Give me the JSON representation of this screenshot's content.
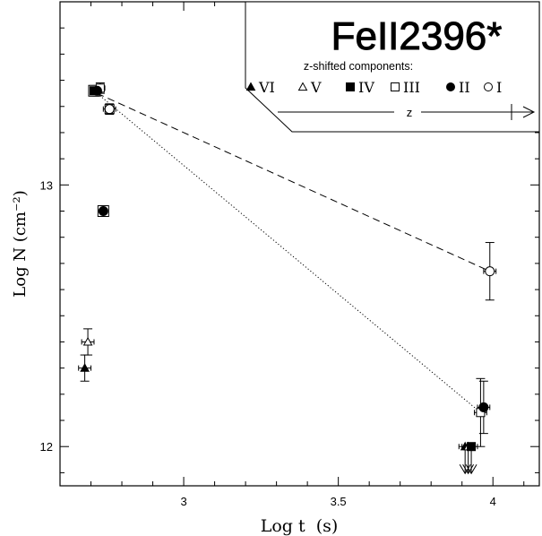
{
  "chart_data": {
    "type": "scatter",
    "title": "FeII2396*",
    "xlabel": "Log t  (s)",
    "ylabel": "Log N (cm⁻²)",
    "xlim": [
      2.6,
      4.15
    ],
    "ylim": [
      11.85,
      13.7
    ],
    "xticks": [
      3,
      3.5,
      4
    ],
    "xtick_labels": [
      "3",
      "3.5",
      "4"
    ],
    "yticks": [
      12,
      13
    ],
    "ytick_labels": [
      "12",
      "13"
    ],
    "legend": {
      "heading": "z-shifted components:",
      "placement": "top-right",
      "arrow_label": "z",
      "entries": [
        {
          "label": "VI",
          "marker": "triangle-filled"
        },
        {
          "label": "V",
          "marker": "triangle-open"
        },
        {
          "label": "IV",
          "marker": "square-filled"
        },
        {
          "label": "III",
          "marker": "square-open"
        },
        {
          "label": "II",
          "marker": "circle-filled"
        },
        {
          "label": "I",
          "marker": "circle-open"
        }
      ]
    },
    "series": [
      {
        "name": "VI",
        "marker": "triangle-filled",
        "points": [
          {
            "x": 2.68,
            "y": 12.3,
            "xerr": 0.02,
            "yerr": 0.05
          },
          {
            "x": 3.91,
            "y": 12.0,
            "xerr": 0.02,
            "upper_limit": true
          }
        ]
      },
      {
        "name": "V",
        "marker": "triangle-open",
        "points": [
          {
            "x": 2.69,
            "y": 12.4,
            "xerr": 0.02,
            "yerr": 0.05
          },
          {
            "x": 3.92,
            "y": 12.0,
            "xerr": 0.02,
            "upper_limit": true
          }
        ]
      },
      {
        "name": "IV",
        "marker": "square-filled",
        "points": [
          {
            "x": 2.71,
            "y": 13.36,
            "xerr": 0.015,
            "yerr": 0.02
          },
          {
            "x": 3.93,
            "y": 12.0,
            "xerr": 0.02,
            "upper_limit": true
          }
        ]
      },
      {
        "name": "III",
        "marker": "square-open",
        "points": [
          {
            "x": 2.73,
            "y": 13.37,
            "xerr": 0.015,
            "yerr": 0.02
          },
          {
            "x": 3.96,
            "y": 12.13,
            "xerr": 0.02,
            "yerr": 0.13
          }
        ]
      },
      {
        "name": "II",
        "marker": "circle-filled",
        "points": [
          {
            "x": 2.72,
            "y": 13.36,
            "xerr": 0.015,
            "yerr": 0.02
          },
          {
            "x": 2.74,
            "y": 12.9,
            "xerr": 0.015,
            "yerr": 0.02
          },
          {
            "x": 3.97,
            "y": 12.15,
            "xerr": 0.02,
            "yerr": 0.1
          }
        ]
      },
      {
        "name": "I",
        "marker": "circle-open",
        "points": [
          {
            "x": 2.76,
            "y": 13.29,
            "xerr": 0.02,
            "yerr": 0.02
          },
          {
            "x": 3.99,
            "y": 12.67,
            "xerr": 0.02,
            "yerr": 0.11
          }
        ]
      }
    ],
    "fit_lines": [
      {
        "style": "dashed",
        "points": [
          {
            "x": 2.72,
            "y": 13.35
          },
          {
            "x": 3.99,
            "y": 12.67
          }
        ]
      },
      {
        "style": "dotted",
        "points": [
          {
            "x": 2.72,
            "y": 13.35
          },
          {
            "x": 3.96,
            "y": 12.13
          }
        ]
      }
    ]
  }
}
